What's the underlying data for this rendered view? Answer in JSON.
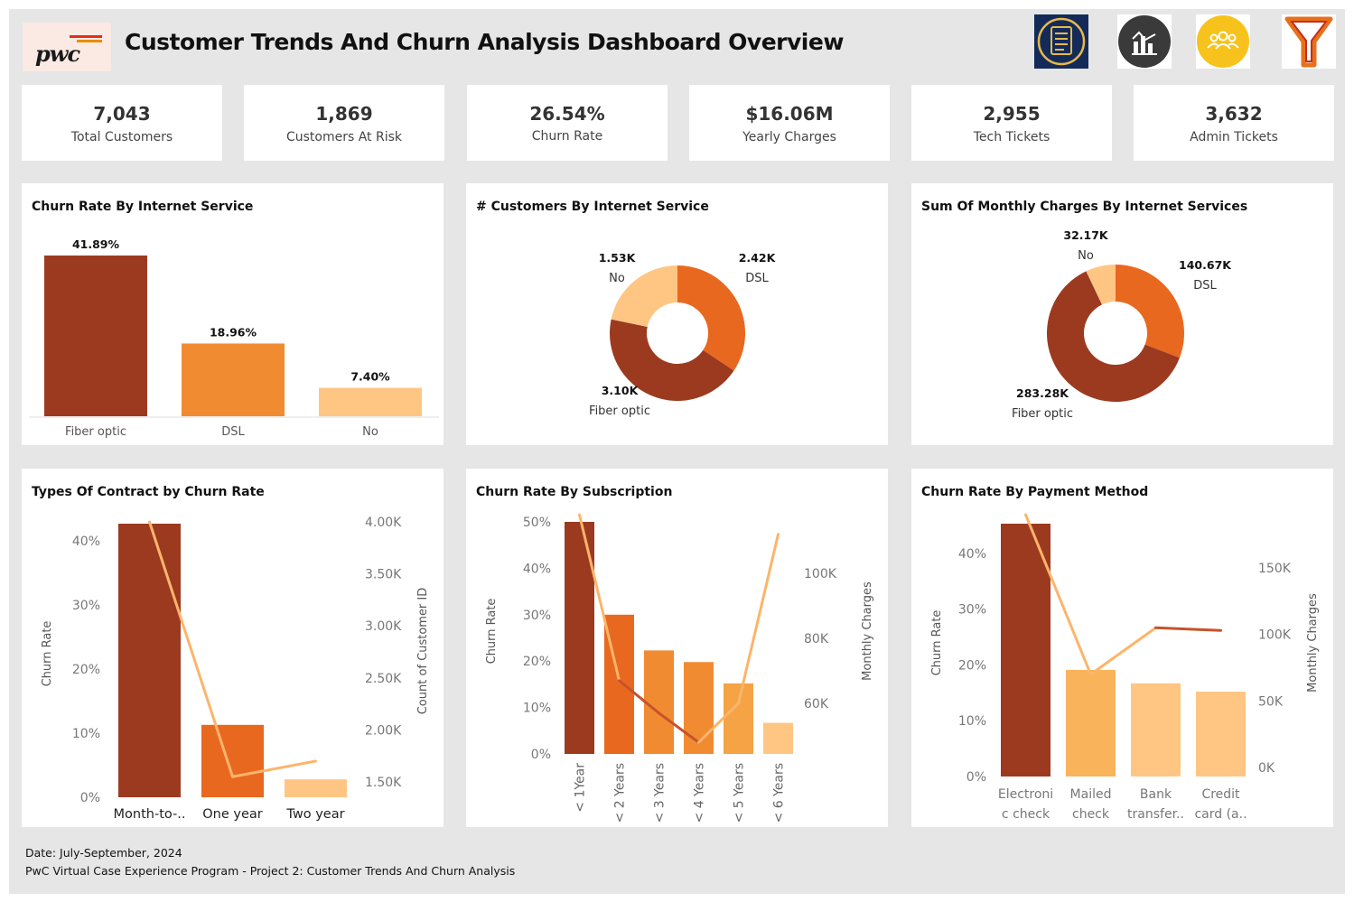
{
  "header": {
    "logo_text": "pwc",
    "title": "Customer Trends And Churn Analysis Dashboard Overview",
    "icons": [
      "checklist-icon",
      "bar-chart-icon",
      "users-icon",
      "funnel-icon"
    ]
  },
  "kpis": [
    {
      "value": "7,043",
      "label": "Total Customers"
    },
    {
      "value": "1,869",
      "label": "Customers At Risk"
    },
    {
      "value": "26.54%",
      "label": "Churn Rate"
    },
    {
      "value": "$16.06M",
      "label": "Yearly Charges"
    },
    {
      "value": "2,955",
      "label": "Tech Tickets"
    },
    {
      "value": "3,632",
      "label": "Admin Tickets"
    }
  ],
  "colors": {
    "dark": "#9c3a20",
    "mid": "#e9681f",
    "orange": "#f18b32",
    "light": "#ffc683",
    "light2": "#f9b45b",
    "line_dark": "#c8522a",
    "line_light": "#fbb56b"
  },
  "chart_data": [
    {
      "type": "bar",
      "title": "Churn Rate By Internet Service",
      "categories": [
        "Fiber optic",
        "DSL",
        "No"
      ],
      "values": [
        41.89,
        18.96,
        7.4
      ],
      "value_labels": [
        "41.89%",
        "18.96%",
        "7.40%"
      ]
    },
    {
      "type": "pie",
      "title": "# Customers By Internet Service",
      "categories": [
        "DSL",
        "Fiber optic",
        "No"
      ],
      "values": [
        2.42,
        3.1,
        1.53
      ],
      "value_labels": [
        "2.42K",
        "3.10K",
        "1.53K"
      ]
    },
    {
      "type": "pie",
      "title": "Sum Of Monthly Charges By Internet Services",
      "categories": [
        "DSL",
        "Fiber optic",
        "No"
      ],
      "values": [
        140.67,
        283.28,
        32.17
      ],
      "value_labels": [
        "140.67K",
        "283.28K",
        "32.17K"
      ]
    },
    {
      "type": "bar",
      "title": "Types Of Contract by Churn Rate",
      "categories": [
        "Month-to-..",
        "One year",
        "Two year"
      ],
      "series": [
        {
          "values": [
            42.7,
            11.3,
            2.8
          ]
        },
        {
          "values": [
            4000,
            1550,
            1700
          ]
        }
      ],
      "ylabel": "Churn Rate",
      "y2label": "Count of Customer ID",
      "y_ticks": [
        "0%",
        "10%",
        "20%",
        "30%",
        "40%"
      ],
      "y2_ticks": [
        "1.50K",
        "2.00K",
        "2.50K",
        "3.00K",
        "3.50K",
        "4.00K"
      ]
    },
    {
      "type": "bar",
      "title": "Churn Rate By Subscription",
      "categories": [
        "< 1Year",
        "< 2 Years",
        "< 3 Years",
        "< 4 Years",
        "< 5 Years",
        "< 6 Years"
      ],
      "series": [
        {
          "values": [
            50,
            30,
            22.3,
            19.8,
            15.2,
            6.7
          ]
        },
        {
          "values": [
            118000,
            67000,
            57000,
            48000,
            60000,
            112000
          ]
        }
      ],
      "ylabel": "Churn Rate",
      "y2label": "Monthly Charges",
      "y_ticks": [
        "0%",
        "10%",
        "20%",
        "30%",
        "40%",
        "50%"
      ],
      "y2_ticks": [
        "60K",
        "80K",
        "100K"
      ]
    },
    {
      "type": "bar",
      "title": "Churn Rate By Payment Method",
      "categories": [
        "Electroni c check",
        "Mailed check",
        "Bank transfer..",
        "Credit card (a.."
      ],
      "series": [
        {
          "values": [
            45.3,
            19.1,
            16.7,
            15.2
          ]
        },
        {
          "values": [
            190000,
            70000,
            105000,
            103000
          ]
        }
      ],
      "ylabel": "Churn Rate",
      "y2label": "Monthly Charges",
      "y_ticks": [
        "0%",
        "10%",
        "20%",
        "30%",
        "40%"
      ],
      "y2_ticks": [
        "0K",
        "50K",
        "100K",
        "150K"
      ]
    }
  ],
  "footer": {
    "date": "Date: July-September, 2024",
    "program": "PwC Virtual Case Experience Program -  Project 2: Customer Trends And Churn Analysis"
  }
}
